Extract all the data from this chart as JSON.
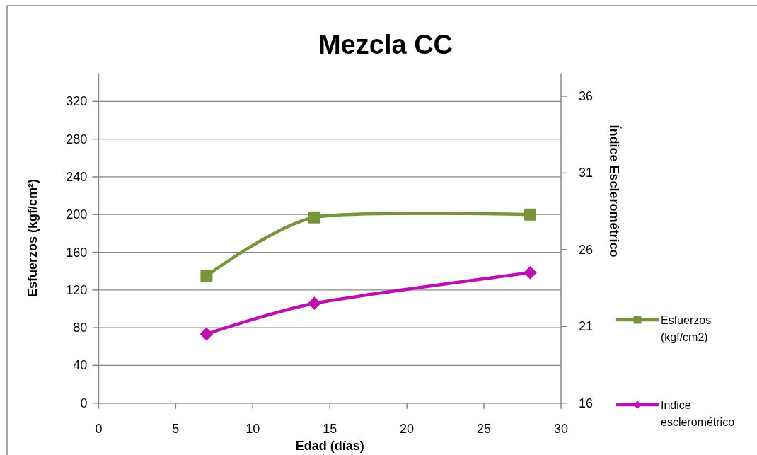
{
  "chart_data": {
    "type": "line",
    "title": "Mezcla CC",
    "xlabel": "Edad (días)",
    "ylabel": "Esfuerzos (kgf/cm²)",
    "y2label": "Índice Esclerométrico",
    "x": [
      7,
      14,
      28
    ],
    "series": [
      {
        "name": "Esfuerzos (kgf/cm2)",
        "color": "#77933c",
        "values": [
          135,
          197,
          200
        ],
        "marker": "square"
      },
      {
        "name": "Indice esclerométrico",
        "color": "#c00fb0",
        "values": [
          20.5,
          22.5,
          24.5
        ],
        "axis": "y2",
        "marker": "diamond"
      }
    ],
    "xlim": [
      0,
      30
    ],
    "xticks": [
      0,
      5,
      10,
      15,
      20,
      25,
      30
    ],
    "ylim": [
      0,
      350
    ],
    "yticks": [
      0,
      40,
      80,
      120,
      160,
      200,
      240,
      280,
      320
    ],
    "y2lim": [
      16,
      37.5
    ],
    "y2ticks": [
      16,
      21,
      26,
      31,
      36
    ],
    "grid": "y",
    "legend": "right",
    "line_style": "solid"
  }
}
